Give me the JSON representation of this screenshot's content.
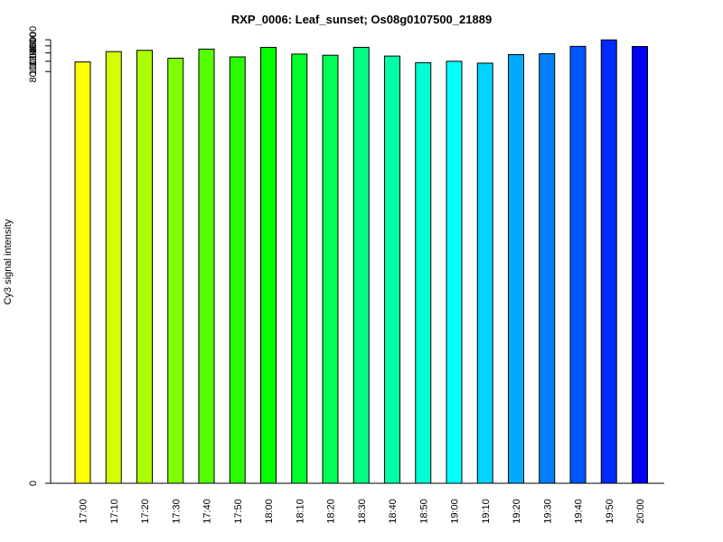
{
  "chart_data": {
    "type": "bar",
    "title": "RXP_0006: Leaf_sunset; Os08g0107500_21889",
    "xlabel": "",
    "ylabel": "Cy3 signal intensity",
    "categories": [
      "17:00",
      "17:10",
      "17:20",
      "17:30",
      "17:40",
      "17:50",
      "18:00",
      "18:10",
      "18:20",
      "18:30",
      "18:40",
      "18:50",
      "19:00",
      "19:10",
      "19:20",
      "19:30",
      "19:40",
      "19:50",
      "20:00"
    ],
    "values": [
      9850,
      12350,
      12700,
      10700,
      13050,
      11000,
      13550,
      11700,
      11400,
      13550,
      11200,
      9700,
      10000,
      9600,
      11550,
      11800,
      13850,
      15950,
      13800
    ],
    "colors": [
      "#FFFF00",
      "#D4FF00",
      "#AAFF00",
      "#80FF00",
      "#55FF00",
      "#2AFF00",
      "#00FF00",
      "#00FF2A",
      "#00FF55",
      "#00FF80",
      "#00FFAA",
      "#00FFD4",
      "#00FFFF",
      "#00D4FF",
      "#00AAFF",
      "#0080FF",
      "#0055FF",
      "#002AFF",
      "#0000FF"
    ],
    "yticks": [
      0,
      8000,
      10000,
      12000,
      14000,
      16000
    ],
    "ytick_labels": [
      "0",
      "8000",
      "10000",
      "12000",
      "14000",
      "16000"
    ],
    "ylim": [
      0,
      16000
    ],
    "yscale": "log",
    "grid": false,
    "legend": "none"
  }
}
